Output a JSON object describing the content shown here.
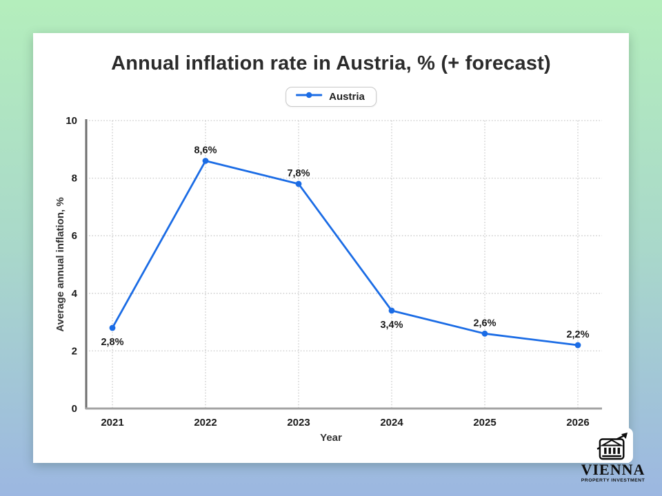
{
  "page": {
    "bg_gradient_top": "#b4eebc",
    "bg_gradient_bottom": "#9cb7e1",
    "card_color": "#ffffff"
  },
  "chart_data": {
    "type": "line",
    "title": "Annual inflation rate in Austria, % (+ forecast)",
    "xlabel": "Year",
    "ylabel": "Average annual inflation, %",
    "categories": [
      "2021",
      "2022",
      "2023",
      "2024",
      "2025",
      "2026"
    ],
    "series": [
      {
        "name": "Austria",
        "values": [
          2.8,
          8.6,
          7.8,
          3.4,
          2.6,
          2.2
        ],
        "point_labels": [
          "2,8%",
          "8,6%",
          "7,8%",
          "3,4%",
          "2,6%",
          "2,2%"
        ],
        "label_placement": [
          "below",
          "above",
          "above",
          "below",
          "above",
          "above"
        ],
        "color": "#1b6ce5"
      }
    ],
    "ylim": [
      0,
      10
    ],
    "yticks": [
      0,
      2,
      4,
      6,
      8,
      10
    ],
    "grid": true,
    "grid_color": "#c9c9c9",
    "axis_color_left": "#6f6f6f",
    "axis_color_bottom": "#a3a3a3",
    "text_color": "#1a1a1a",
    "legend_position": "top-center"
  },
  "legend": {
    "label": "Austria"
  },
  "logo": {
    "name": "VIENNA",
    "subtitle": "PROPERTY INVESTMENT"
  }
}
